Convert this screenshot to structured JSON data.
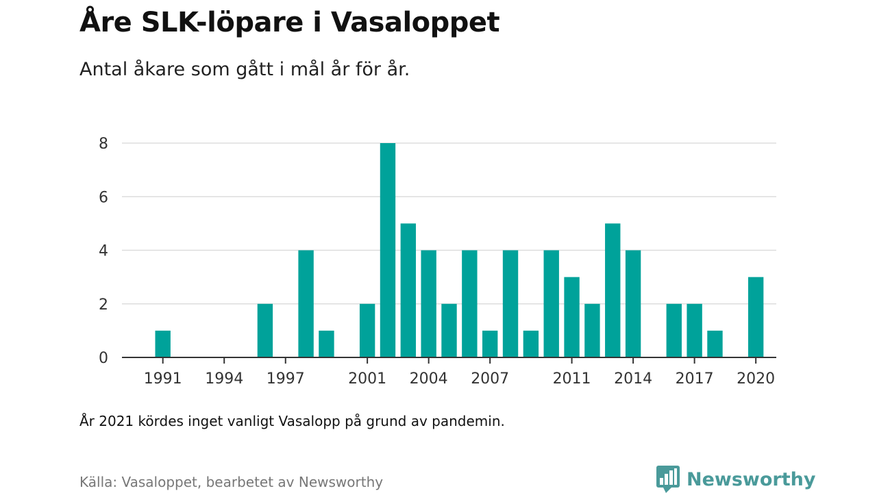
{
  "header": {
    "title": "Åre SLK-löpare i Vasaloppet",
    "subtitle": "Antal åkare som gått i mål år för år."
  },
  "footer": {
    "note": "År 2021 kördes inget vanligt Vasalopp på grund av pandemin.",
    "source": "Källa: Vasaloppet, bearbetet av Newsworthy",
    "brand": "Newsworthy",
    "brand_icon": "bar-chart-speech-icon"
  },
  "colors": {
    "bar": "#00a29a",
    "grid": "#dddddd",
    "axis": "#333333",
    "brand": "#4a9a9a"
  },
  "chart_data": {
    "type": "bar",
    "title": "Åre SLK-löpare i Vasaloppet",
    "subtitle": "Antal åkare som gått i mål år för år.",
    "xlabel": "",
    "ylabel": "",
    "ylim": [
      0,
      8
    ],
    "yticks": [
      0,
      2,
      4,
      6,
      8
    ],
    "xticks": [
      1991,
      1994,
      1997,
      2001,
      2004,
      2007,
      2011,
      2014,
      2017,
      2020
    ],
    "xlim": [
      1989,
      2021
    ],
    "grid": true,
    "legend": "none",
    "x": [
      1991,
      1996,
      1998,
      1999,
      2001,
      2002,
      2003,
      2004,
      2005,
      2006,
      2007,
      2008,
      2009,
      2010,
      2011,
      2012,
      2013,
      2014,
      2016,
      2017,
      2018,
      2020
    ],
    "values": [
      1,
      2,
      4,
      1,
      2,
      8,
      5,
      4,
      2,
      4,
      1,
      4,
      1,
      4,
      3,
      2,
      5,
      4,
      2,
      2,
      1,
      3
    ]
  }
}
